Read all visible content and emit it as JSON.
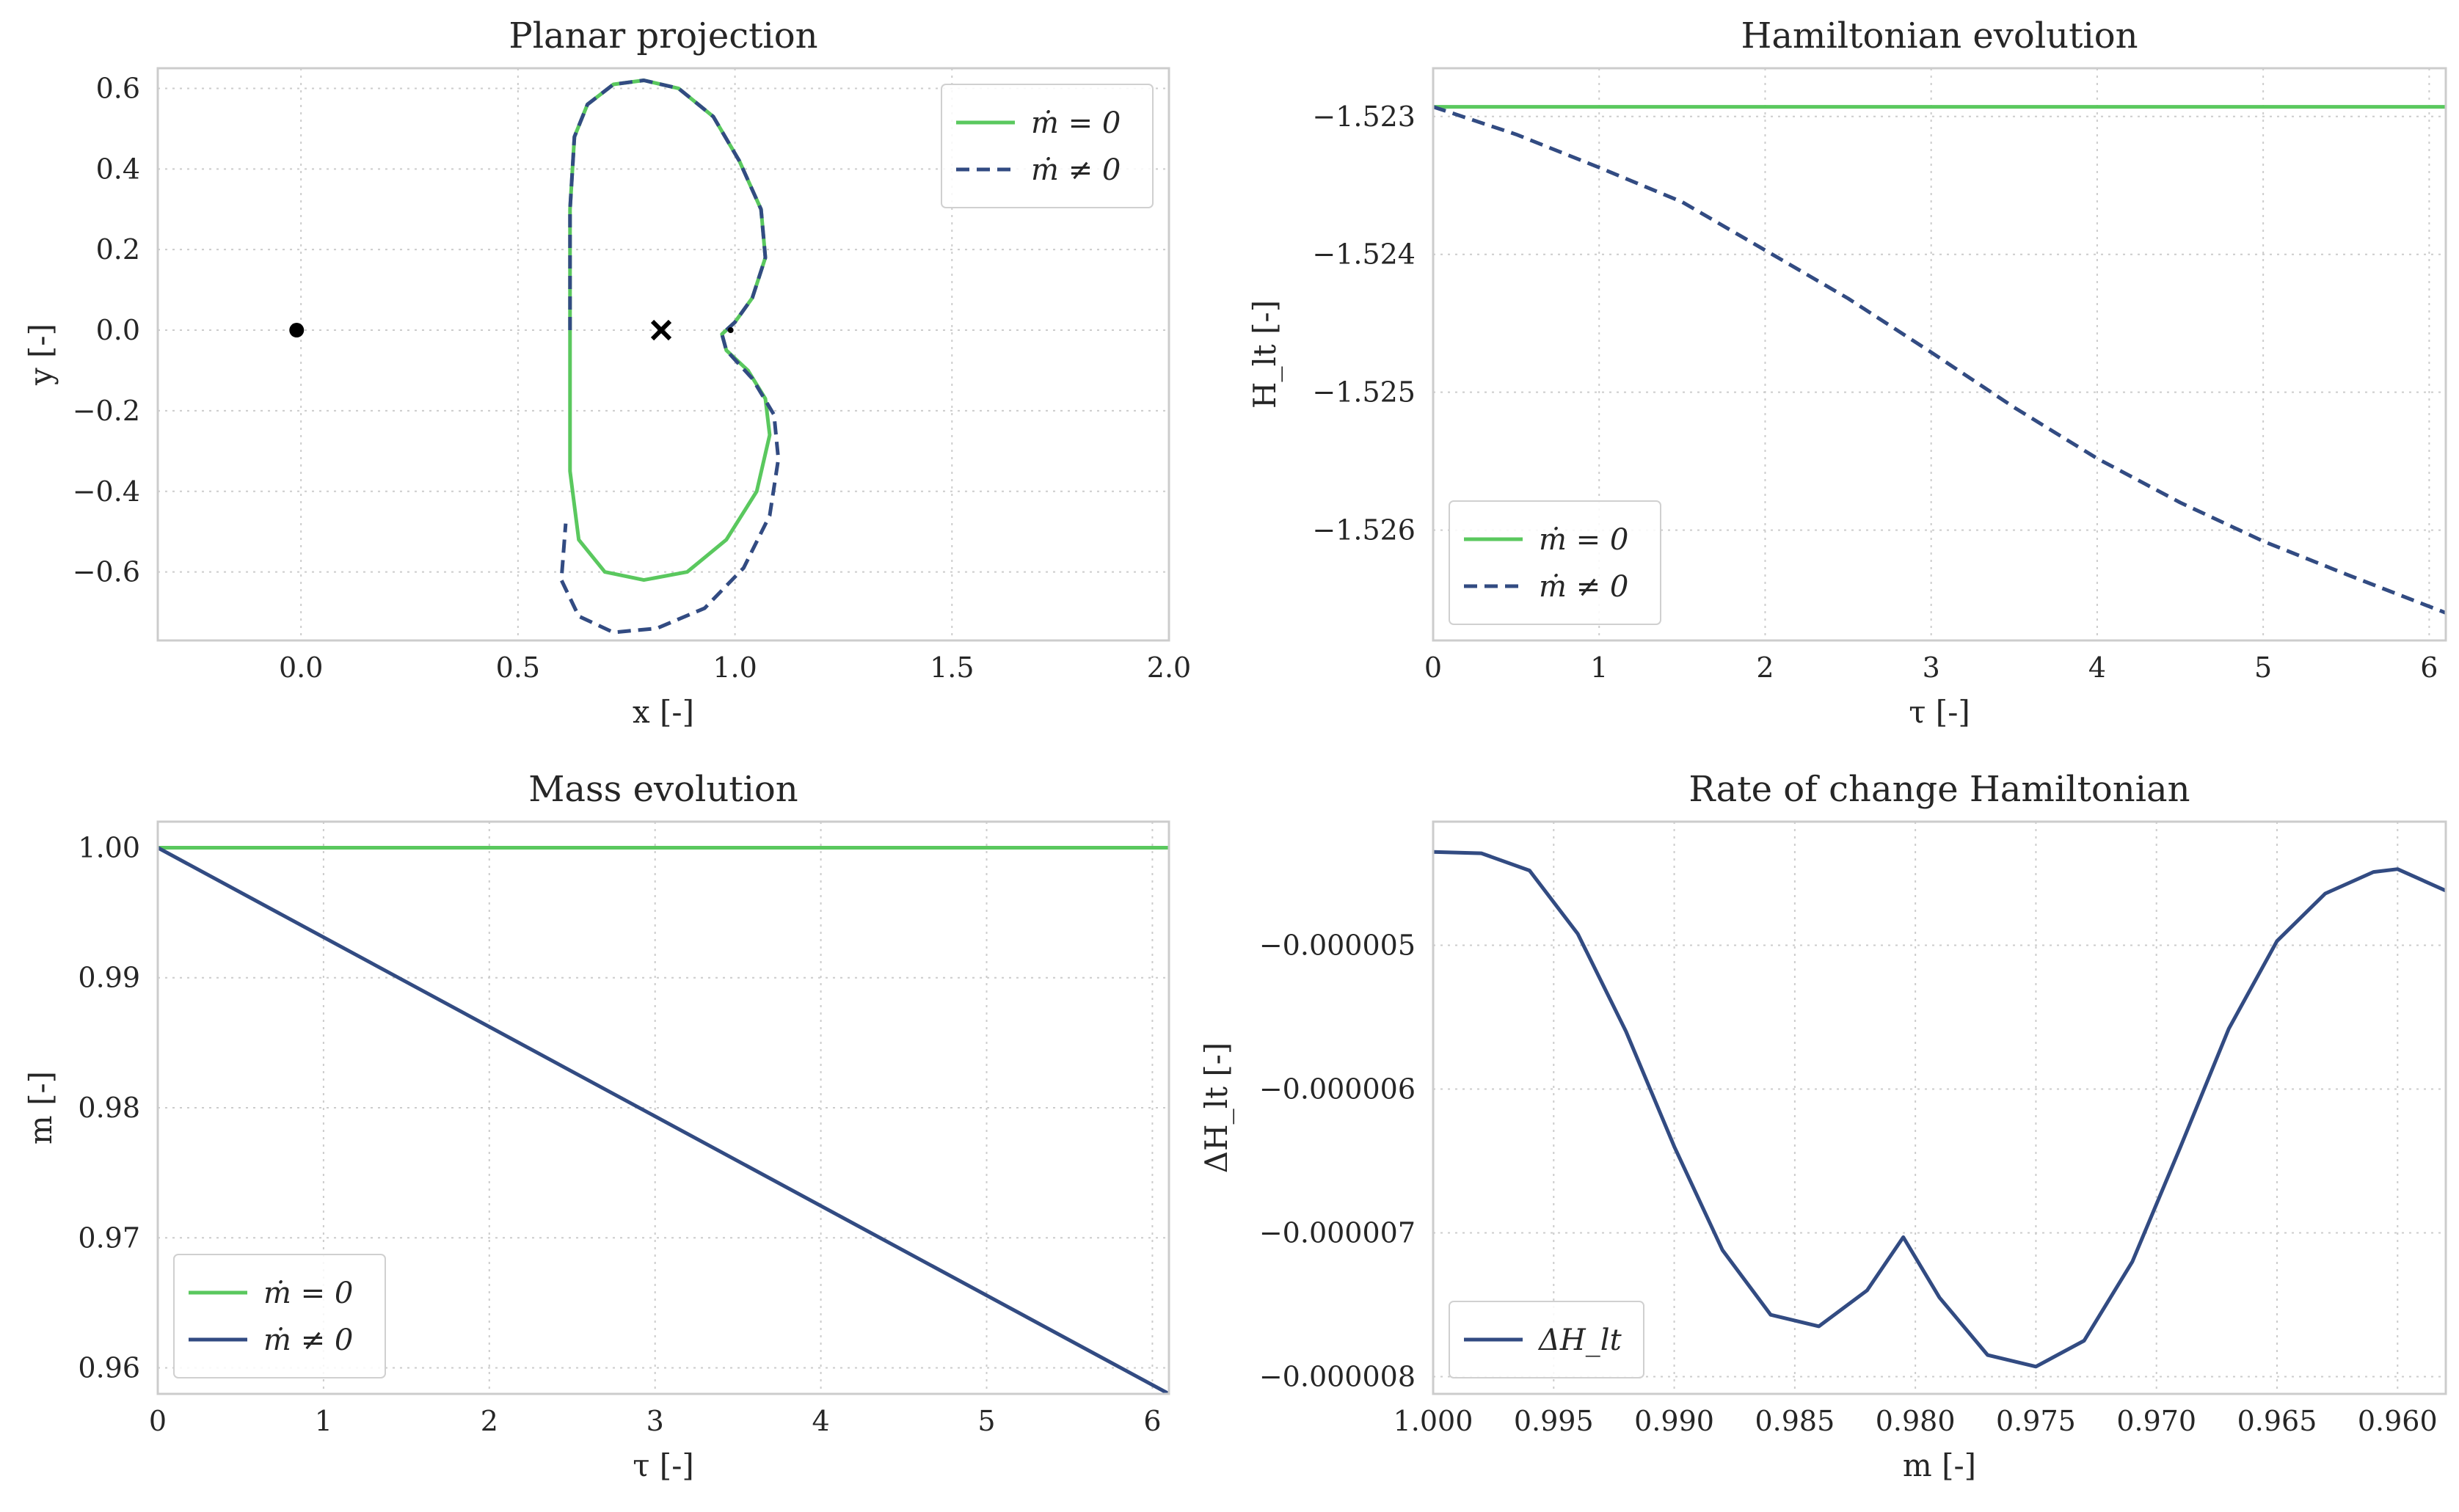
{
  "colors": {
    "green": "#5ac85e",
    "navy": "#324b82",
    "marker": "#000000"
  },
  "chart_data": [
    {
      "type": "line",
      "title": "Planar projection",
      "xlabel": "x [-]",
      "ylabel": "y [-]",
      "xlim": [
        -0.33,
        2.0
      ],
      "ylim": [
        -0.77,
        0.65
      ],
      "xticks": [
        0.0,
        0.5,
        1.0,
        1.5,
        2.0
      ],
      "xtick_labels": [
        "0.0",
        "0.5",
        "1.0",
        "1.5",
        "2.0"
      ],
      "yticks": [
        0.6,
        0.4,
        0.2,
        0.0,
        -0.2,
        -0.4,
        -0.6
      ],
      "ytick_labels": [
        "0.6",
        "0.4",
        "0.2",
        "0.0",
        "−0.2",
        "−0.4",
        "−0.6"
      ],
      "legend_position": "upper right",
      "grid": true,
      "series": [
        {
          "name": "ṁ = 0",
          "style": "solid",
          "color": "green",
          "x": [
            0.62,
            0.62,
            0.63,
            0.66,
            0.72,
            0.79,
            0.87,
            0.95,
            1.01,
            1.06,
            1.07,
            1.04,
            1.0,
            0.97,
            0.98,
            1.03,
            1.07,
            1.08,
            1.05,
            0.98,
            0.89,
            0.79,
            0.7,
            0.64,
            0.62,
            0.62
          ],
          "y": [
            0.0,
            0.3,
            0.48,
            0.56,
            0.61,
            0.62,
            0.6,
            0.53,
            0.42,
            0.3,
            0.18,
            0.08,
            0.02,
            -0.01,
            -0.05,
            -0.1,
            -0.17,
            -0.26,
            -0.4,
            -0.52,
            -0.6,
            -0.62,
            -0.6,
            -0.52,
            -0.35,
            0.0
          ]
        },
        {
          "name": "ṁ ≠ 0",
          "style": "dashed",
          "color": "navy",
          "x": [
            0.62,
            0.62,
            0.63,
            0.66,
            0.72,
            0.79,
            0.87,
            0.95,
            1.01,
            1.06,
            1.07,
            1.04,
            1.0,
            0.97,
            0.98,
            1.04,
            1.09,
            1.1,
            1.08,
            1.02,
            0.93,
            0.82,
            0.72,
            0.64,
            0.6,
            0.61
          ],
          "y": [
            0.0,
            0.3,
            0.48,
            0.56,
            0.61,
            0.62,
            0.6,
            0.53,
            0.42,
            0.3,
            0.18,
            0.08,
            0.02,
            -0.01,
            -0.05,
            -0.12,
            -0.21,
            -0.32,
            -0.46,
            -0.59,
            -0.69,
            -0.74,
            -0.75,
            -0.71,
            -0.62,
            -0.48
          ]
        }
      ],
      "markers": [
        {
          "symbol": "dot",
          "x": -0.01,
          "y": 0.0
        },
        {
          "symbol": "cross",
          "x": 0.83,
          "y": 0.0
        },
        {
          "symbol": "small-dot",
          "x": 0.99,
          "y": 0.0
        }
      ]
    },
    {
      "type": "line",
      "title": "Hamiltonian evolution",
      "xlabel": "τ [-]",
      "ylabel": "H_lt [-]",
      "xlim": [
        0,
        6.1
      ],
      "ylim": [
        -1.5268,
        -1.52265
      ],
      "xticks": [
        0,
        1,
        2,
        3,
        4,
        5,
        6
      ],
      "xtick_labels": [
        "0",
        "1",
        "2",
        "3",
        "4",
        "5",
        "6"
      ],
      "yticks": [
        -1.523,
        -1.524,
        -1.525,
        -1.526
      ],
      "ytick_labels": [
        "−1.523",
        "−1.524",
        "−1.525",
        "−1.526"
      ],
      "legend_position": "lower left",
      "grid": true,
      "series": [
        {
          "name": "ṁ = 0",
          "style": "solid",
          "color": "green",
          "x": [
            0,
            6.1
          ],
          "y": [
            -1.52293,
            -1.52293
          ]
        },
        {
          "name": "ṁ ≠ 0",
          "style": "dashed",
          "color": "navy",
          "x": [
            0,
            0.5,
            1.0,
            1.5,
            2.0,
            2.5,
            3.0,
            3.5,
            4.0,
            4.5,
            5.0,
            5.5,
            6.1
          ],
          "y": [
            -1.52293,
            -1.52313,
            -1.52337,
            -1.52362,
            -1.52397,
            -1.52432,
            -1.52471,
            -1.52511,
            -1.52548,
            -1.5258,
            -1.52608,
            -1.52632,
            -1.5266
          ]
        }
      ]
    },
    {
      "type": "line",
      "title": "Mass evolution",
      "xlabel": "τ [-]",
      "ylabel": "m [-]",
      "xlim": [
        0,
        6.1
      ],
      "ylim": [
        0.958,
        1.002
      ],
      "xticks": [
        0,
        1,
        2,
        3,
        4,
        5,
        6
      ],
      "xtick_labels": [
        "0",
        "1",
        "2",
        "3",
        "4",
        "5",
        "6"
      ],
      "yticks": [
        1.0,
        0.99,
        0.98,
        0.97,
        0.96
      ],
      "ytick_labels": [
        "1.00",
        "0.99",
        "0.98",
        "0.97",
        "0.96"
      ],
      "legend_position": "lower left",
      "grid": true,
      "series": [
        {
          "name": "ṁ = 0",
          "style": "solid",
          "color": "green",
          "x": [
            0,
            6.1
          ],
          "y": [
            1.0,
            1.0
          ]
        },
        {
          "name": "ṁ ≠ 0",
          "style": "solid",
          "color": "navy",
          "x": [
            0,
            6.1
          ],
          "y": [
            1.0,
            0.958
          ]
        }
      ]
    },
    {
      "type": "line",
      "title": "Rate of change Hamiltonian",
      "xlabel": "m [-]",
      "ylabel": "ΔH_lt [-]",
      "xlim": [
        1.0,
        0.958
      ],
      "ylim": [
        -8.12e-06,
        -4.14e-06
      ],
      "x_inverted": true,
      "xticks": [
        1.0,
        0.995,
        0.99,
        0.985,
        0.98,
        0.975,
        0.97,
        0.965,
        0.96
      ],
      "xtick_labels": [
        "1.000",
        "0.995",
        "0.990",
        "0.985",
        "0.980",
        "0.975",
        "0.970",
        "0.965",
        "0.960"
      ],
      "yticks": [
        -5e-06,
        -6e-06,
        -7e-06,
        -8e-06
      ],
      "ytick_labels": [
        "−0.000005",
        "−0.000006",
        "−0.000007",
        "−0.000008"
      ],
      "legend_position": "lower left",
      "grid": true,
      "series": [
        {
          "name": "ΔH_lt",
          "style": "solid",
          "color": "navy",
          "x": [
            1.0,
            0.998,
            0.996,
            0.994,
            0.992,
            0.99,
            0.988,
            0.986,
            0.984,
            0.982,
            0.9805,
            0.979,
            0.977,
            0.975,
            0.973,
            0.971,
            0.969,
            0.967,
            0.965,
            0.963,
            0.961,
            0.96,
            0.958
          ],
          "y": [
            -4.35e-06,
            -4.36e-06,
            -4.48e-06,
            -4.92e-06,
            -5.6e-06,
            -6.4e-06,
            -7.12e-06,
            -7.57e-06,
            -7.65e-06,
            -7.4e-06,
            -7.03e-06,
            -7.45e-06,
            -7.85e-06,
            -7.93e-06,
            -7.75e-06,
            -7.2e-06,
            -6.4e-06,
            -5.58e-06,
            -4.97e-06,
            -4.64e-06,
            -4.49e-06,
            -4.47e-06,
            -4.62e-06
          ]
        }
      ]
    }
  ]
}
